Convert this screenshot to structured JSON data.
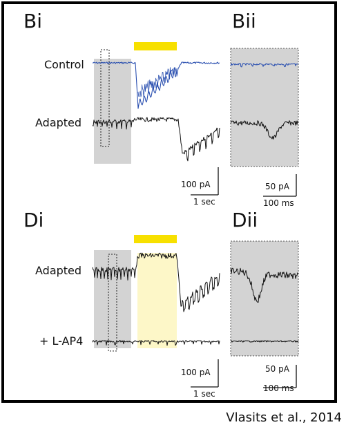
{
  "panels": {
    "bi": {
      "label": "Bi"
    },
    "bii": {
      "label": "Bii"
    },
    "di": {
      "label": "Di"
    },
    "dii": {
      "label": "Dii"
    }
  },
  "traces": {
    "control": {
      "label": "Control",
      "color": "#2b50b0"
    },
    "adapted_b": {
      "label": "Adapted"
    },
    "adapted_d": {
      "label": "Adapted"
    },
    "lap4": {
      "label": "+ L-AP4"
    }
  },
  "scalebars": {
    "b_main": {
      "current": "100 pA",
      "time": "1 sec"
    },
    "b_inset": {
      "current": "50 pA",
      "time": "100 ms"
    },
    "d_main": {
      "current": "100 pA",
      "time": "1 sec"
    },
    "d_inset": {
      "current": "50 pA",
      "time": "100 ms"
    }
  },
  "colors": {
    "stimulus_bar": "#f7e000",
    "shade_gray": "#d3d3d3",
    "shade_yellow": "#fdf7c8",
    "trace_black": "#111111"
  },
  "credit": "Vlasits et al., 2014"
}
